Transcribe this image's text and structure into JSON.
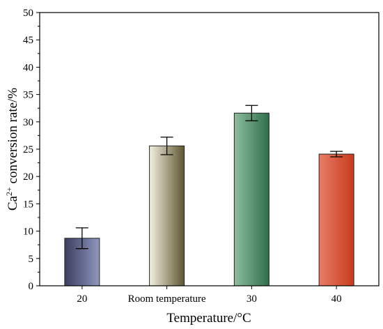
{
  "chart_data": {
    "type": "bar",
    "categories": [
      "20",
      "Room temperature",
      "30",
      "40"
    ],
    "values": [
      8.7,
      25.6,
      31.6,
      24.1
    ],
    "errors": [
      1.9,
      1.6,
      1.4,
      0.5
    ],
    "bar_colors": [
      [
        "#3b3e5e",
        "#8f97bf"
      ],
      [
        "#f3f0df",
        "#5e5633"
      ],
      [
        "#8dbd9c",
        "#2f6f4c"
      ],
      [
        "#e87c67",
        "#c93b1c"
      ]
    ],
    "xlabel": "Temperature/°C",
    "ylabel_prefix": "Ca",
    "ylabel_superscript": "2+",
    "ylabel_suffix": " conversion rate/%",
    "ylim": [
      0,
      50
    ],
    "yticks": [
      0,
      5,
      10,
      15,
      20,
      25,
      30,
      35,
      40,
      45,
      50
    ],
    "grid": false,
    "legend": "none"
  }
}
